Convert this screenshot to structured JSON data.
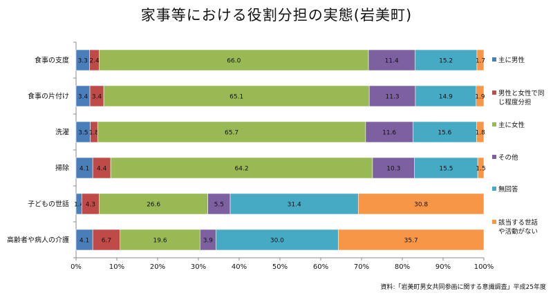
{
  "chart_data": {
    "type": "bar",
    "orientation": "horizontal",
    "stacked": true,
    "title": "家事等における役割分担の実態(岩美町)",
    "categories": [
      "食事の支度",
      "食事の片付け",
      "洗濯",
      "掃除",
      "子どもの世話",
      "高齢者や病人の介護"
    ],
    "series": [
      {
        "name": "主に男性",
        "color": "#4a7ebb",
        "values": [
          3.3,
          3.4,
          3.5,
          4.1,
          1.4,
          4.1
        ]
      },
      {
        "name": "男性と女性で同じ程度分担",
        "color": "#be4b48",
        "values": [
          2.4,
          3.4,
          1.8,
          4.4,
          4.3,
          6.7
        ]
      },
      {
        "name": "主に女性",
        "color": "#98b954",
        "values": [
          66.0,
          65.1,
          65.7,
          64.2,
          26.6,
          19.6
        ]
      },
      {
        "name": "その他",
        "color": "#7d60a0",
        "values": [
          11.4,
          11.3,
          11.6,
          10.3,
          5.5,
          3.9
        ]
      },
      {
        "name": "無回答",
        "color": "#46aac5",
        "values": [
          15.2,
          14.9,
          15.6,
          15.5,
          31.4,
          30.0
        ]
      },
      {
        "name": "該当する世話や活動がない",
        "color": "#f79646",
        "values": [
          1.7,
          1.9,
          1.8,
          1.5,
          30.8,
          35.7
        ]
      }
    ],
    "xlim": [
      0,
      100
    ],
    "xticks": [
      "0%",
      "10%",
      "20%",
      "30%",
      "40%",
      "50%",
      "60%",
      "70%",
      "80%",
      "90%",
      "100%"
    ],
    "legend": {
      "position": "right",
      "entries": [
        {
          "lines": [
            "主に男性"
          ]
        },
        {
          "lines": [
            "男性と女性で同",
            "じ程度分担"
          ]
        },
        {
          "lines": [
            "主に女性"
          ]
        },
        {
          "lines": [
            "その他"
          ]
        },
        {
          "lines": [
            "無回答"
          ]
        },
        {
          "lines": [
            "該当する世話",
            "や活動がない"
          ]
        }
      ]
    },
    "grid": false
  },
  "source_note": "資料:「岩美町男女共同参画に関する意識調査」平成25年度"
}
